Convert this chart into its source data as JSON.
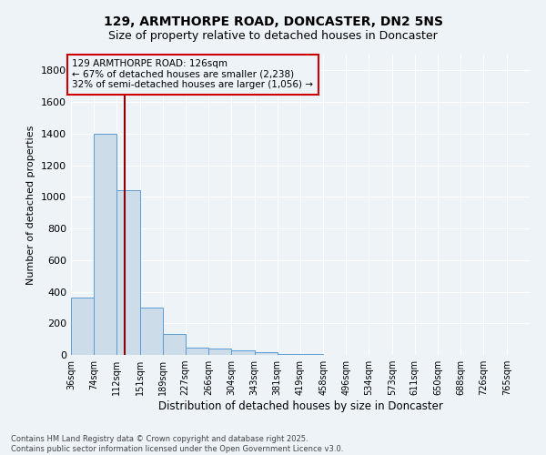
{
  "title": "129, ARMTHORPE ROAD, DONCASTER, DN2 5NS",
  "subtitle": "Size of property relative to detached houses in Doncaster",
  "xlabel": "Distribution of detached houses by size in Doncaster",
  "ylabel": "Number of detached properties",
  "bar_edges": [
    36,
    74,
    112,
    151,
    189,
    227,
    266,
    304,
    343,
    381,
    419,
    458,
    496,
    534,
    573,
    611,
    650,
    688,
    726,
    765,
    803
  ],
  "bar_heights": [
    360,
    1400,
    1040,
    300,
    130,
    45,
    40,
    30,
    20,
    5,
    3,
    2,
    2,
    2,
    1,
    1,
    1,
    1,
    1,
    1
  ],
  "bar_color": "#ccdce8",
  "bar_edge_color": "#5b9bd5",
  "property_size": 126,
  "vline_color": "#8b0000",
  "annotation_text": "129 ARMTHORPE ROAD: 126sqm\n← 67% of detached houses are smaller (2,238)\n32% of semi-detached houses are larger (1,056) →",
  "annotation_box_color": "#cc0000",
  "annotation_text_color": "#000000",
  "ylim": [
    0,
    1900
  ],
  "yticks": [
    0,
    200,
    400,
    600,
    800,
    1000,
    1200,
    1400,
    1600,
    1800
  ],
  "background_color": "#eef3f8",
  "grid_color": "#ffffff",
  "footnote": "Contains HM Land Registry data © Crown copyright and database right 2025.\nContains public sector information licensed under the Open Government Licence v3.0.",
  "title_fontsize": 10,
  "subtitle_fontsize": 9,
  "annot_fontsize": 7.5
}
